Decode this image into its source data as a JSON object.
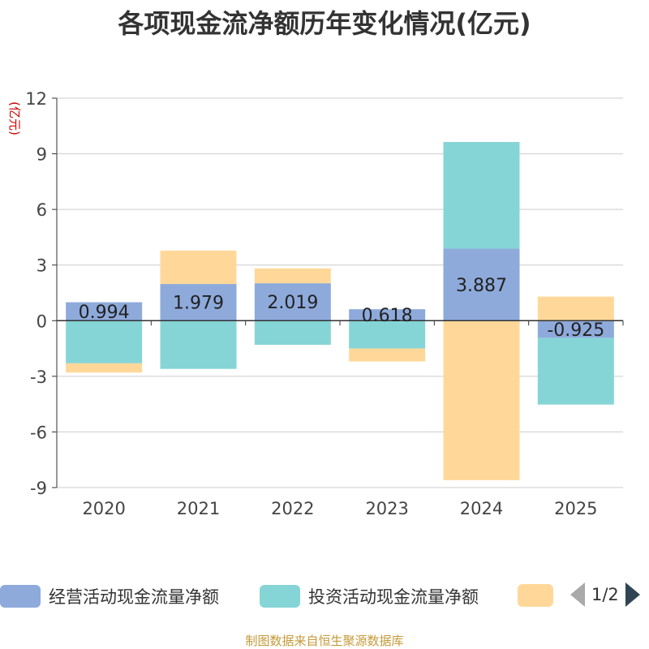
{
  "chart_data": {
    "type": "bar",
    "stacked": true,
    "title": "各项现金流净额历年变化情况(亿元)",
    "ylabel": "(亿元)",
    "xlabel": "",
    "categories": [
      "2020",
      "2021",
      "2022",
      "2023",
      "2024",
      "2025"
    ],
    "ylim": [
      -9,
      12
    ],
    "yticks": [
      12,
      9,
      6,
      3,
      0,
      -3,
      -6,
      -9
    ],
    "grid": true,
    "series": [
      {
        "name": "经营活动现金流量净额",
        "color": "#8eaadb",
        "values": [
          0.994,
          1.979,
          2.019,
          0.618,
          3.887,
          -0.925
        ],
        "labeled": true
      },
      {
        "name": "投资活动现金流量净额",
        "color": "#86d5d6",
        "values": [
          -2.3,
          -2.6,
          -1.3,
          -1.5,
          5.75,
          -3.6
        ],
        "labeled": false
      },
      {
        "name": "",
        "color": "#ffd899",
        "values": [
          -0.5,
          1.8,
          0.8,
          -0.7,
          -8.6,
          1.3
        ],
        "labeled": false
      }
    ]
  },
  "legend": {
    "page_indicator": "1/2"
  },
  "source_note": "制图数据来自恒生聚源数据库"
}
